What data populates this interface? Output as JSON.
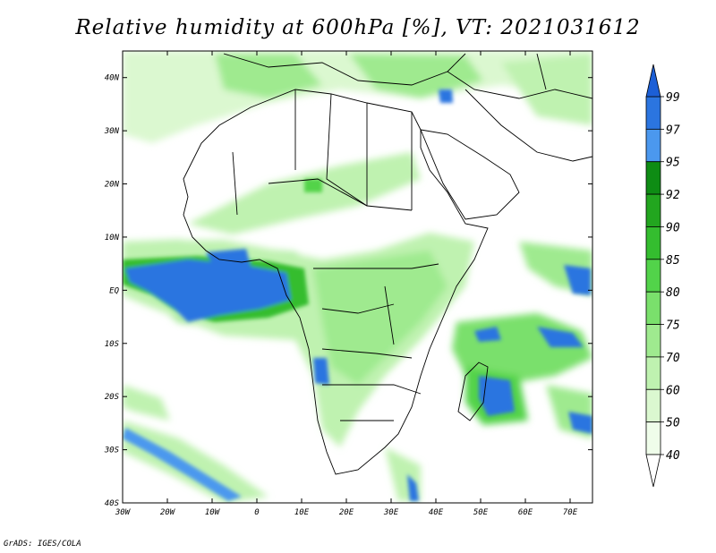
{
  "title": "Relative humidity at 600hPa [%], VT: 2021031612",
  "credit": "GrADS: IGES/COLA",
  "map": {
    "lat_labels": [
      "40N",
      "30N",
      "20N",
      "10N",
      "EQ",
      "10S",
      "20S",
      "30S",
      "40S"
    ],
    "lon_labels": [
      "30W",
      "20W",
      "10W",
      "0",
      "10E",
      "20E",
      "30E",
      "40E",
      "50E",
      "60E",
      "70E"
    ],
    "lat_range": [
      -40,
      45
    ],
    "lon_range": [
      -30,
      75
    ]
  },
  "colorbar": {
    "labels": [
      "99",
      "97",
      "95",
      "92",
      "90",
      "85",
      "80",
      "75",
      "70",
      "60",
      "50",
      "40"
    ],
    "colors": [
      "#1c5fd6",
      "#2b75e0",
      "#4b98ee",
      "#0e8c14",
      "#22a61f",
      "#34bd2f",
      "#52d34a",
      "#7ae06c",
      "#9fea8f",
      "#bff2b0",
      "#dbf8d0",
      "#effdea"
    ]
  }
}
